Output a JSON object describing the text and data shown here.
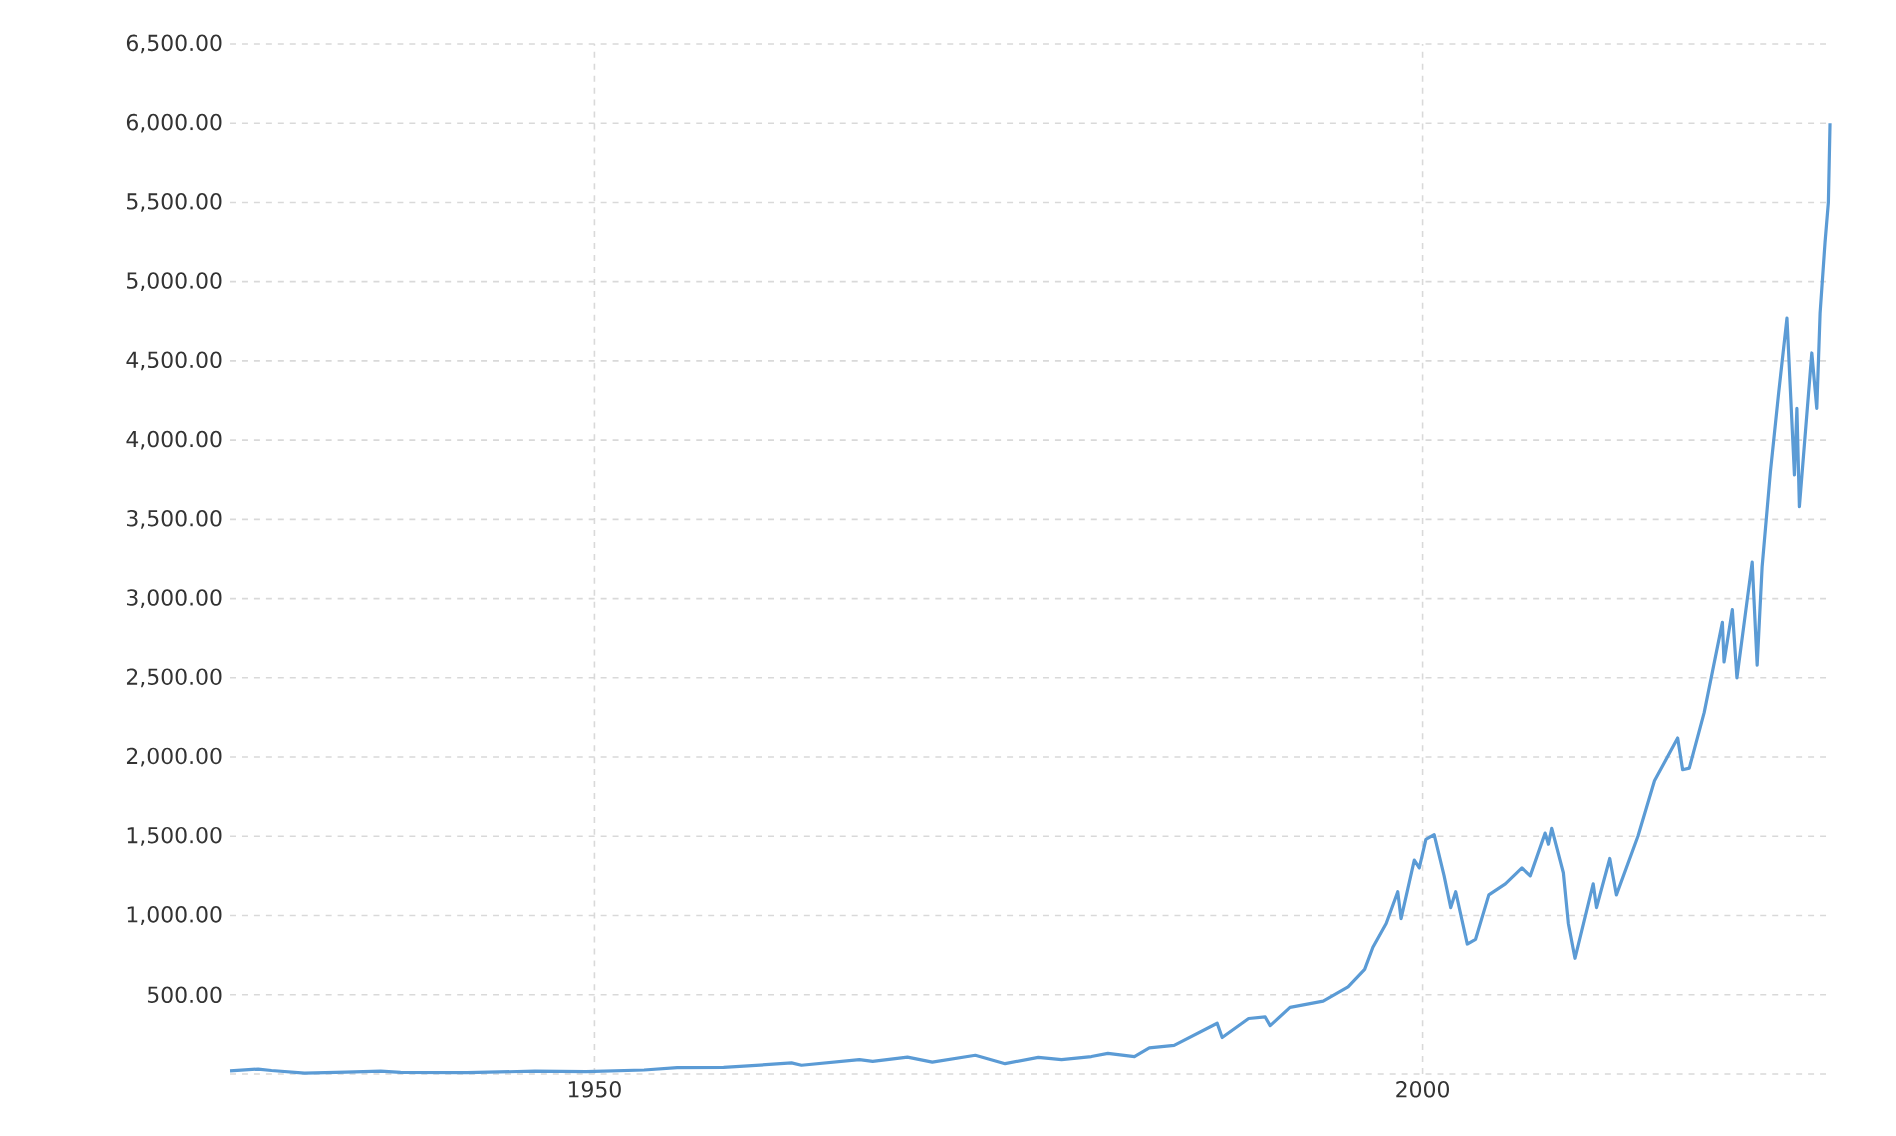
{
  "chart_data": {
    "type": "line",
    "x": [
      1928,
      1929.7,
      1930.5,
      1932.5,
      1935,
      1937.1,
      1938.3,
      1942.3,
      1946.4,
      1949.5,
      1950,
      1953,
      1955,
      1957.8,
      1960,
      1961.9,
      1962.5,
      1966,
      1966.8,
      1968.9,
      1970.4,
      1973,
      1974.8,
      1976.8,
      1978.2,
      1980,
      1981,
      1982.6,
      1983.5,
      1985,
      1987.6,
      1987.9,
      1989.5,
      1990.5,
      1990.8,
      1992,
      1994,
      1995.5,
      1996.5,
      1997,
      1997.8,
      1998.5,
      1998.7,
      1999.5,
      1999.8,
      2000.2,
      2000.7,
      2001.3,
      2001.7,
      2002,
      2002.7,
      2003.2,
      2004,
      2005,
      2006,
      2006.5,
      2007.4,
      2007.6,
      2007.8,
      2008.5,
      2008.8,
      2009.2,
      2010.3,
      2010.5,
      2011.3,
      2011.7,
      2013,
      2014,
      2015.4,
      2015.7,
      2016.1,
      2017,
      2018.1,
      2018.2,
      2018.7,
      2018.98,
      2019.9,
      2020.2,
      2020.5,
      2021,
      2021.5,
      2022.0,
      2022.45,
      2022.6,
      2022.75,
      2023.5,
      2023.8,
      2024.0,
      2024.3,
      2024.5,
      2024.6
    ],
    "series": [
      {
        "color": "#5b9bd5",
        "values": [
          20,
          31,
          22,
          5,
          12,
          18,
          10,
          8,
          18,
          15,
          17,
          25,
          40,
          42,
          56,
          70,
          55,
          90,
          80,
          106,
          75,
          118,
          65,
          105,
          90,
          110,
          130,
          110,
          165,
          180,
          320,
          230,
          350,
          360,
          305,
          420,
          460,
          550,
          660,
          800,
          950,
          1150,
          980,
          1350,
          1300,
          1480,
          1510,
          1250,
          1050,
          1150,
          820,
          850,
          1130,
          1200,
          1300,
          1250,
          1520,
          1450,
          1550,
          1270,
          950,
          730,
          1200,
          1050,
          1360,
          1130,
          1500,
          1850,
          2120,
          1920,
          1930,
          2280,
          2850,
          2600,
          2930,
          2500,
          3230,
          2580,
          3200,
          3800,
          4300,
          4770,
          3780,
          4200,
          3580,
          4550,
          4200,
          4800,
          5250,
          5500,
          6000
        ]
      }
    ],
    "xlim": [
      1928,
      2024.6
    ],
    "ylim": [
      0,
      6500
    ],
    "xticks": [
      1950,
      2000
    ],
    "yticks": [
      {
        "value": 0,
        "label": null
      },
      {
        "value": 500,
        "label": "500.00"
      },
      {
        "value": 1000,
        "label": "1,000.00"
      },
      {
        "value": 1500,
        "label": "1,500.00"
      },
      {
        "value": 2000,
        "label": "2,000.00"
      },
      {
        "value": 2500,
        "label": "2,500.00"
      },
      {
        "value": 3000,
        "label": "3,000.00"
      },
      {
        "value": 3500,
        "label": "3,500.00"
      },
      {
        "value": 4000,
        "label": "4,000.00"
      },
      {
        "value": 4500,
        "label": "4,500.00"
      },
      {
        "value": 5000,
        "label": "5,000.00"
      },
      {
        "value": 5500,
        "label": "5,500.00"
      },
      {
        "value": 6000,
        "label": "6,000.00"
      },
      {
        "value": 6500,
        "label": "6,500.00"
      }
    ],
    "grid": true,
    "line_style": "solid",
    "marker": "none"
  }
}
